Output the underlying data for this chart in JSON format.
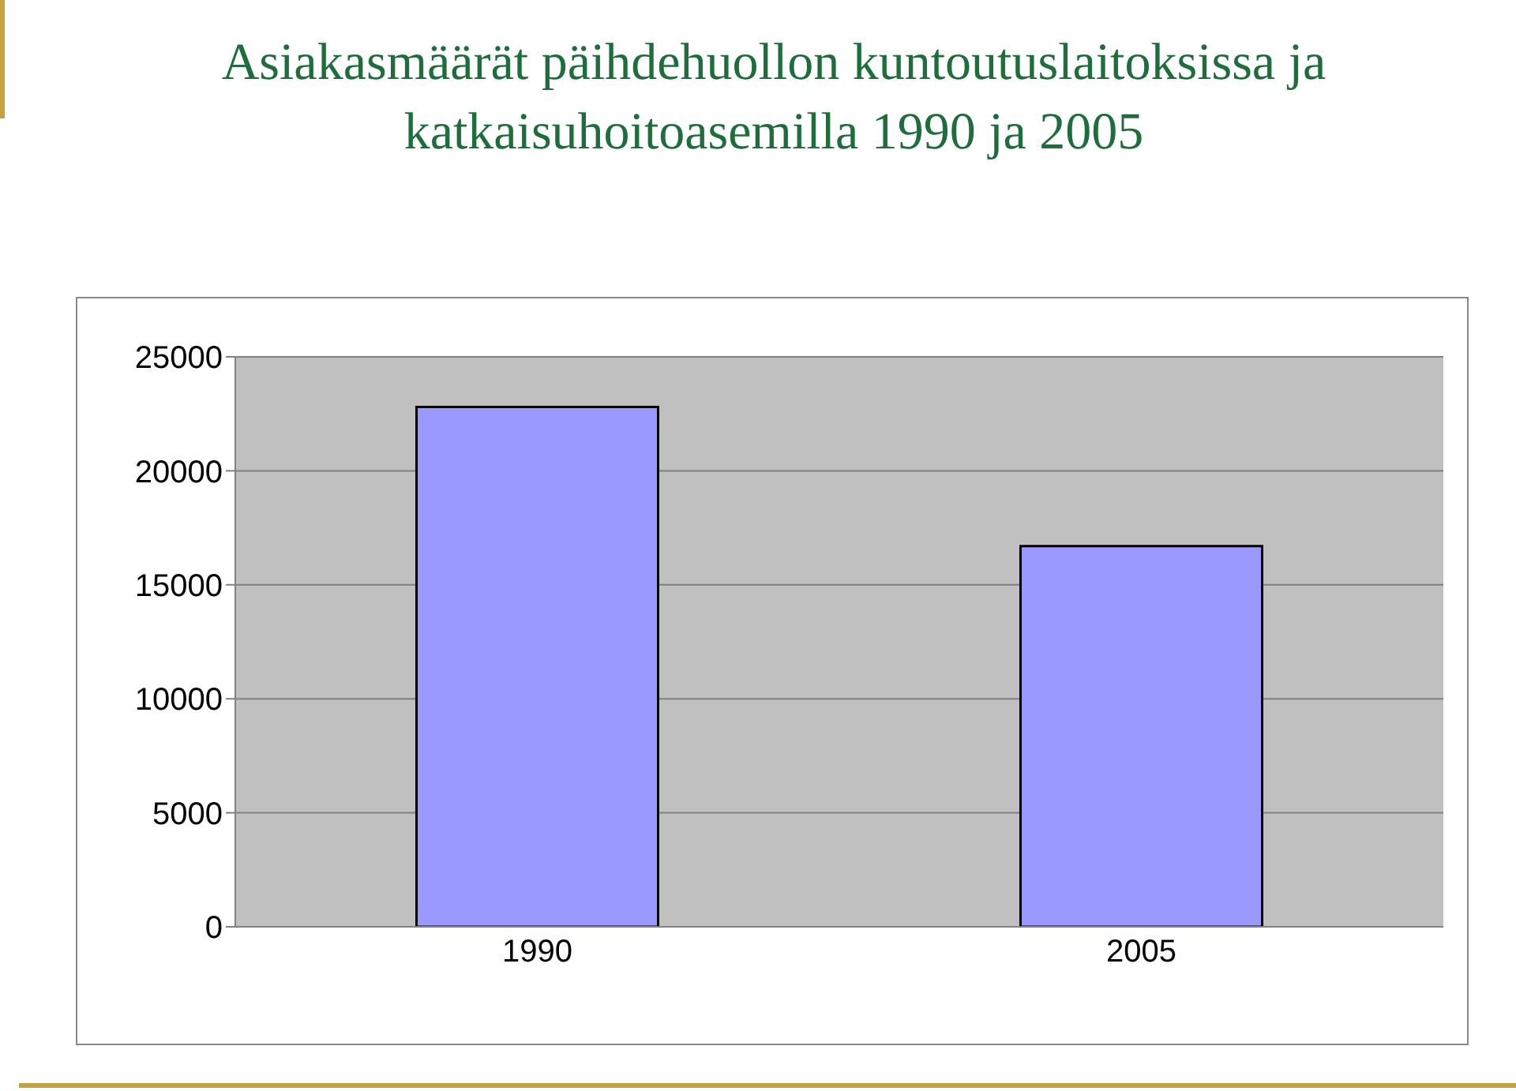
{
  "chart_data": {
    "type": "bar",
    "title": "Asiakasmäärät päihdehuollon kuntoutuslaitoksissa ja katkaisuhoitoasemilla 1990 ja 2005",
    "categories": [
      "1990",
      "2005"
    ],
    "values": [
      22800,
      16700
    ],
    "color": "#9999ff",
    "ylim": [
      0,
      25000
    ],
    "yticks": [
      0,
      5000,
      10000,
      15000,
      20000,
      25000
    ],
    "grid": "y"
  }
}
